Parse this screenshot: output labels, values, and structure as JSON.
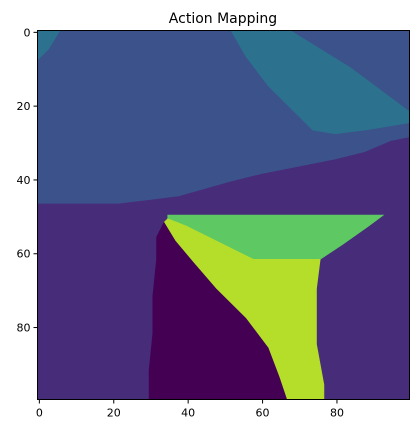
{
  "chart_data": {
    "type": "heatmap",
    "title": "Action Mapping",
    "xlabel": "",
    "ylabel": "",
    "grid": false,
    "colormap": "viridis",
    "image_size": [
      100,
      100
    ],
    "xlim": [
      -0.5,
      99.5
    ],
    "ylim": [
      99.5,
      -0.5
    ],
    "x_ticks": [
      0,
      20,
      40,
      60,
      80
    ],
    "y_ticks": [
      0,
      20,
      40,
      60,
      80
    ],
    "categories": [
      {
        "id": 0,
        "color": "#440154"
      },
      {
        "id": 1,
        "color": "#472c7a"
      },
      {
        "id": 2,
        "color": "#3b528b"
      },
      {
        "id": 3,
        "color": "#2c728e"
      },
      {
        "id": 4,
        "color": "#5ec962"
      },
      {
        "id": 5,
        "color": "#b5de2b"
      }
    ],
    "regions": [
      {
        "category": 2,
        "points": [
          [
            0,
            0
          ],
          [
            100,
            0
          ],
          [
            100,
            29
          ],
          [
            95,
            30
          ],
          [
            88,
            33
          ],
          [
            80,
            35
          ],
          [
            70,
            37
          ],
          [
            60,
            39
          ],
          [
            52,
            41
          ],
          [
            45,
            43
          ],
          [
            38,
            45
          ],
          [
            30,
            46
          ],
          [
            22,
            47
          ],
          [
            12,
            47
          ],
          [
            6,
            47
          ],
          [
            0,
            47
          ]
        ]
      },
      {
        "category": 3,
        "points": [
          [
            0,
            0
          ],
          [
            6,
            0
          ],
          [
            3,
            5
          ],
          [
            0,
            8
          ]
        ]
      },
      {
        "category": 3,
        "points": [
          [
            52,
            0
          ],
          [
            68,
            0
          ],
          [
            76,
            5
          ],
          [
            84,
            10
          ],
          [
            92,
            16
          ],
          [
            100,
            22
          ],
          [
            100,
            25
          ],
          [
            88,
            27
          ],
          [
            80,
            28
          ],
          [
            74,
            27
          ],
          [
            69,
            22
          ],
          [
            62,
            15
          ],
          [
            56,
            7
          ]
        ]
      },
      {
        "category": 1,
        "points": [
          [
            0,
            47
          ],
          [
            12,
            47
          ],
          [
            22,
            47
          ],
          [
            30,
            46
          ],
          [
            38,
            45
          ],
          [
            45,
            43
          ],
          [
            52,
            41
          ],
          [
            60,
            39
          ],
          [
            70,
            37
          ],
          [
            80,
            35
          ],
          [
            88,
            33
          ],
          [
            95,
            30
          ],
          [
            100,
            29
          ],
          [
            100,
            100
          ],
          [
            0,
            100
          ]
        ]
      },
      {
        "category": 4,
        "points": [
          [
            35,
            50
          ],
          [
            93,
            50
          ],
          [
            89,
            53
          ],
          [
            82,
            58
          ],
          [
            76,
            62
          ],
          [
            58,
            62
          ],
          [
            48,
            57
          ],
          [
            40,
            53
          ],
          [
            35,
            51
          ]
        ]
      },
      {
        "category": 5,
        "points": [
          [
            35,
            51
          ],
          [
            40,
            53
          ],
          [
            48,
            57
          ],
          [
            58,
            62
          ],
          [
            76,
            62
          ],
          [
            75,
            70
          ],
          [
            75,
            85
          ],
          [
            77,
            96
          ],
          [
            77,
            100
          ],
          [
            67,
            100
          ],
          [
            65,
            94
          ],
          [
            62,
            86
          ],
          [
            56,
            78
          ],
          [
            48,
            70
          ],
          [
            42,
            63
          ],
          [
            37,
            57
          ],
          [
            34,
            52
          ]
        ]
      },
      {
        "category": 0,
        "points": [
          [
            34,
            52
          ],
          [
            37,
            57
          ],
          [
            42,
            63
          ],
          [
            48,
            70
          ],
          [
            56,
            78
          ],
          [
            62,
            86
          ],
          [
            65,
            94
          ],
          [
            67,
            100
          ],
          [
            30,
            100
          ],
          [
            30,
            92
          ],
          [
            31,
            82
          ],
          [
            31,
            72
          ],
          [
            32,
            62
          ],
          [
            32,
            56
          ]
        ]
      }
    ]
  }
}
